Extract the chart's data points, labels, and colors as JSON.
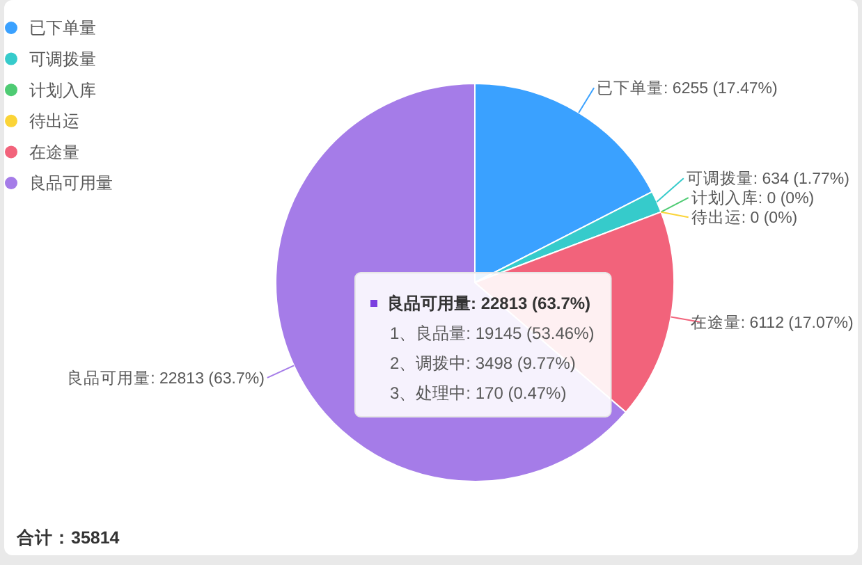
{
  "chart_data": {
    "type": "pie",
    "categories": [
      "已下单量",
      "可调拨量",
      "计划入库",
      "待出运",
      "在途量",
      "良品可用量"
    ],
    "values": [
      6255,
      634,
      0,
      0,
      6112,
      22813
    ],
    "colors": [
      "#3aa1ff",
      "#36cbcb",
      "#4ecb73",
      "#fbd437",
      "#f2637b",
      "#a57ce8"
    ],
    "value_labels": [
      "已下单量: 6255 (17.47%)",
      "可调拨量: 634 (1.77%)",
      "计划入库: 0 (0%)",
      "待出运: 0 (0%)",
      "在途量: 6112 (17.07%)",
      "良品可用量: 22813 (63.7%)"
    ],
    "legend": "top left",
    "annotations": [
      "合计：35814",
      "良品可用量: 22813 (63.7%)",
      "1、良品量: 19145 (53.46%)",
      "2、调拨中: 3498 (9.77%)",
      "3、处理中: 170 (0.47%)"
    ]
  }
}
